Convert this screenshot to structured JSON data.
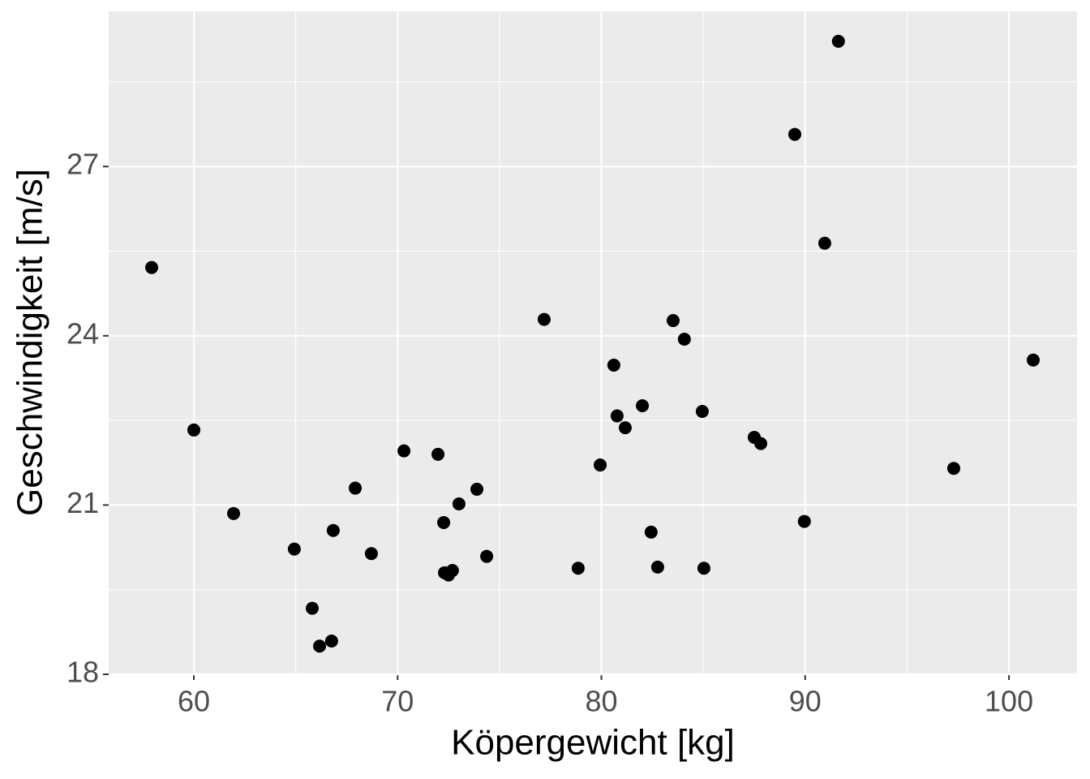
{
  "chart_data": {
    "type": "scatter",
    "x_label": "Köpergewicht [kg]",
    "y_label": "Geschwindigkeit [m/s]",
    "x": [
      57.93,
      60.0,
      61.95,
      64.93,
      65.81,
      66.17,
      66.76,
      66.84,
      67.92,
      68.71,
      70.31,
      71.98,
      72.26,
      72.3,
      72.5,
      72.69,
      73.01,
      73.89,
      74.37,
      77.19,
      78.86,
      79.94,
      80.61,
      80.77,
      81.17,
      82.01,
      82.44,
      82.76,
      83.52,
      84.07,
      84.95,
      85.03,
      87.5,
      87.82,
      89.49,
      89.96,
      90.96,
      91.63,
      97.29,
      101.19
    ],
    "values": [
      25.21,
      22.33,
      20.85,
      20.22,
      19.17,
      18.5,
      18.59,
      20.55,
      21.3,
      20.14,
      21.96,
      21.9,
      20.69,
      19.8,
      19.76,
      19.84,
      21.02,
      21.28,
      20.09,
      24.29,
      19.88,
      21.71,
      23.48,
      22.58,
      22.37,
      22.76,
      20.52,
      19.9,
      24.27,
      23.94,
      22.66,
      19.88,
      22.2,
      22.09,
      27.57,
      20.71,
      25.64,
      29.22,
      21.65,
      23.57
    ],
    "color": "#000000",
    "xlim": [
      55.82,
      103.34
    ],
    "ylim": [
      18,
      29.75
    ],
    "xticks": [
      60,
      70,
      80,
      90,
      100
    ],
    "yticks": [
      18,
      21,
      24,
      27
    ],
    "x_minor_grid": [
      65,
      75,
      85,
      95
    ],
    "y_minor_grid": [
      19.5,
      22.5,
      25.5,
      28.5
    ],
    "grid": true
  }
}
